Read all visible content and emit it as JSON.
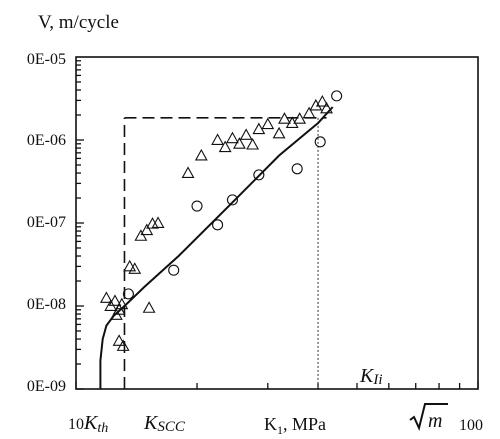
{
  "chart_data": {
    "type": "scatter",
    "title": "",
    "ylabel": "V, m/cycle",
    "xlabel_parts": {
      "main": "K",
      "sub": "1",
      "unit": ", MPa ",
      "sqrt_arg": "m"
    },
    "x_scale": "log",
    "y_scale": "log",
    "xlim": [
      10,
      100
    ],
    "ylim": [
      1e-09,
      1e-05
    ],
    "grid": false,
    "x_tick_labels": {
      "left_number": "10",
      "kth_main": "K",
      "kth_sub": "th",
      "kscc_main": "K",
      "kscc_sub": "SCC",
      "right": "100"
    },
    "y_tick_labels": [
      "0E-05",
      "0E-06",
      "0E-07",
      "0E-08",
      "0E-09"
    ],
    "y_tick_values": [
      1e-05,
      1e-06,
      1e-07,
      1e-08,
      1e-09
    ],
    "kth": 11.5,
    "kscc": 13.2,
    "k1i_value": 40,
    "k1i_label_main": "K",
    "k1i_label_sub": "Ii",
    "series": [
      {
        "marker": "triangle",
        "points": [
          [
            11.9,
            1.25e-08
          ],
          [
            12.2,
            1e-08
          ],
          [
            12.5,
            1.15e-08
          ],
          [
            12.8,
            9e-09
          ],
          [
            12.6,
            7.8e-09
          ],
          [
            13.0,
            1.05e-08
          ],
          [
            12.8,
            3.8e-09
          ],
          [
            13.1,
            3.3e-09
          ],
          [
            13.6,
            3e-08
          ],
          [
            14.0,
            2.8e-08
          ],
          [
            14.5,
            7e-08
          ],
          [
            15.0,
            8.2e-08
          ],
          [
            15.5,
            9.8e-08
          ],
          [
            16.0,
            1e-07
          ],
          [
            15.2,
            9.5e-09
          ],
          [
            19.0,
            4e-07
          ],
          [
            20.5,
            6.5e-07
          ],
          [
            22.5,
            1e-06
          ],
          [
            23.5,
            8.2e-07
          ],
          [
            24.5,
            1.05e-06
          ],
          [
            25.5,
            9e-07
          ],
          [
            26.5,
            1.15e-06
          ],
          [
            27.5,
            8.8e-07
          ],
          [
            28.5,
            1.35e-06
          ],
          [
            30.0,
            1.55e-06
          ],
          [
            32.0,
            1.2e-06
          ],
          [
            33.0,
            1.8e-06
          ],
          [
            34.5,
            1.6e-06
          ],
          [
            36.0,
            1.8e-06
          ],
          [
            38.0,
            2.1e-06
          ],
          [
            39.5,
            2.6e-06
          ],
          [
            41.0,
            2.9e-06
          ],
          [
            42.0,
            2.4e-06
          ]
        ]
      },
      {
        "marker": "circle",
        "points": [
          [
            13.5,
            1.4e-08
          ],
          [
            17.5,
            2.7e-08
          ],
          [
            20.0,
            1.6e-07
          ],
          [
            22.5,
            9.5e-08
          ],
          [
            24.5,
            1.9e-07
          ],
          [
            28.5,
            3.8e-07
          ],
          [
            35.5,
            4.5e-07
          ],
          [
            40.5,
            9.5e-07
          ],
          [
            44.5,
            3.4e-06
          ]
        ]
      }
    ],
    "fit_curve": [
      [
        11.5,
        1e-09
      ],
      [
        11.5,
        2.2e-09
      ],
      [
        11.65,
        4e-09
      ],
      [
        11.9,
        5.8e-09
      ],
      [
        12.4,
        7.6e-09
      ],
      [
        13.2,
        1e-08
      ],
      [
        14.8,
        1.7e-08
      ],
      [
        18.0,
        4e-08
      ],
      [
        24.0,
        1.6e-07
      ],
      [
        32.0,
        6.5e-07
      ],
      [
        40.0,
        1.6e-06
      ],
      [
        43.5,
        2.5e-06
      ]
    ],
    "plateau": {
      "x_from": 13.2,
      "x_to": 42.0,
      "v": 1.85e-06
    }
  }
}
